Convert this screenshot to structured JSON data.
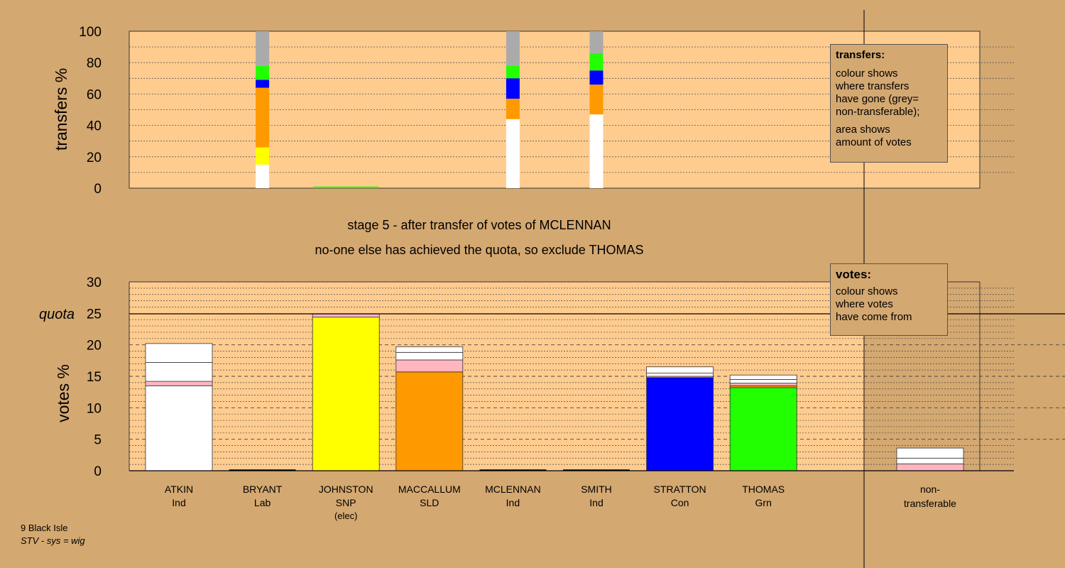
{
  "stage_title": "stage 5 - after transfer of votes of MCLENNAN",
  "stage_subtitle": "no-one else has achieved the quota, so exclude THOMAS",
  "footer": {
    "ward": "9 Black Isle",
    "system": "STV - sys = wig"
  },
  "colors": {
    "background": "#d4a871",
    "panel": "#ffcc8f",
    "Ind": "#ffffff",
    "Lab": "#ff5555",
    "SNP": "#ffff00",
    "SLD": "#ff9900",
    "Con": "#0000ff",
    "Grn": "#22ff00",
    "pink": "#ffb6c1",
    "nontransferable": "#aaaaaa"
  },
  "transfers_legend": {
    "title": "transfers:",
    "line1": "colour shows",
    "line2": "where transfers",
    "line3": "have gone (grey=",
    "line4": "non-transferable);",
    "line5": "area shows",
    "line6": "amount of votes"
  },
  "votes_legend": {
    "title": "votes:",
    "line1": "colour shows",
    "line2": "where votes",
    "line3": "have come from"
  },
  "chart_data": [
    {
      "type": "bar",
      "stacked": true,
      "ylabel": "transfers %",
      "ylim": [
        0,
        100
      ],
      "yticks": [
        "0",
        "20",
        "40",
        "60",
        "80",
        "100"
      ],
      "grid": "dotted",
      "bars": [
        {
          "at": "BRYANT",
          "segments": [
            {
              "color": "Ind",
              "from": 0,
              "to": 15
            },
            {
              "color": "SNP",
              "from": 15,
              "to": 26
            },
            {
              "color": "SLD",
              "from": 26,
              "to": 64
            },
            {
              "color": "Con",
              "from": 64,
              "to": 69
            },
            {
              "color": "Grn",
              "from": 69,
              "to": 78
            },
            {
              "color": "nontransferable",
              "from": 78,
              "to": 100
            }
          ]
        },
        {
          "at": "JOHNSTON",
          "wide": true,
          "segments": [
            {
              "color": "Grn",
              "from": 0,
              "to": 1
            }
          ]
        },
        {
          "at": "MCLENNAN",
          "segments": [
            {
              "color": "Ind",
              "from": 0,
              "to": 44
            },
            {
              "color": "SLD",
              "from": 44,
              "to": 57
            },
            {
              "color": "Con",
              "from": 57,
              "to": 70
            },
            {
              "color": "Grn",
              "from": 70,
              "to": 78
            },
            {
              "color": "nontransferable",
              "from": 78,
              "to": 100
            }
          ]
        },
        {
          "at": "SMITH",
          "segments": [
            {
              "color": "Ind",
              "from": 0,
              "to": 47
            },
            {
              "color": "SLD",
              "from": 47,
              "to": 66
            },
            {
              "color": "Con",
              "from": 66,
              "to": 75
            },
            {
              "color": "Grn",
              "from": 75,
              "to": 86
            },
            {
              "color": "nontransferable",
              "from": 86,
              "to": 100
            }
          ]
        }
      ]
    },
    {
      "type": "bar",
      "stacked": true,
      "ylabel": "votes %",
      "ylim": [
        0,
        30
      ],
      "yticks": [
        "0",
        "5",
        "10",
        "15",
        "20",
        "25",
        "30"
      ],
      "quota": 25,
      "quota_label": "quota",
      "candidates": [
        {
          "name": "ATKIN",
          "party": "Ind",
          "note": "",
          "segments": [
            {
              "color": "Ind",
              "to": 13.5
            },
            {
              "color": "pink",
              "to": 14.2
            },
            {
              "color": "Ind",
              "to": 17.2
            },
            {
              "color": "Ind",
              "to": 20.2
            }
          ]
        },
        {
          "name": "BRYANT",
          "party": "Lab",
          "note": "",
          "segments": []
        },
        {
          "name": "JOHNSTON",
          "party": "SNP",
          "note": "(elec)",
          "segments": [
            {
              "color": "SNP",
              "to": 24.4
            },
            {
              "color": "pink",
              "to": 24.9
            }
          ]
        },
        {
          "name": "MACCALLUM",
          "party": "SLD",
          "note": "",
          "segments": [
            {
              "color": "SLD",
              "to": 15.7
            },
            {
              "color": "pink",
              "to": 17.6
            },
            {
              "color": "Ind",
              "to": 18.8
            },
            {
              "color": "Ind",
              "to": 19.7
            }
          ]
        },
        {
          "name": "MCLENNAN",
          "party": "Ind",
          "note": "",
          "segments": []
        },
        {
          "name": "SMITH",
          "party": "Ind",
          "note": "",
          "segments": []
        },
        {
          "name": "STRATTON",
          "party": "Con",
          "note": "",
          "segments": [
            {
              "color": "Con",
              "to": 14.8
            },
            {
              "color": "pink",
              "to": 15.0
            },
            {
              "color": "Ind",
              "to": 15.5
            },
            {
              "color": "Ind",
              "to": 16.5
            }
          ]
        },
        {
          "name": "THOMAS",
          "party": "Grn",
          "note": "",
          "segments": [
            {
              "color": "Grn",
              "to": 13.2
            },
            {
              "color": "SLD",
              "to": 13.5
            },
            {
              "color": "pink",
              "to": 13.9
            },
            {
              "color": "Ind",
              "to": 14.5
            },
            {
              "color": "Ind",
              "to": 15.2
            }
          ]
        }
      ],
      "nontransferable": {
        "label1": "non-",
        "label2": "transferable",
        "segments": [
          {
            "color": "pink",
            "to": 1.1
          },
          {
            "color": "Ind",
            "to": 2.0
          },
          {
            "color": "Ind",
            "to": 3.6
          }
        ]
      }
    }
  ]
}
